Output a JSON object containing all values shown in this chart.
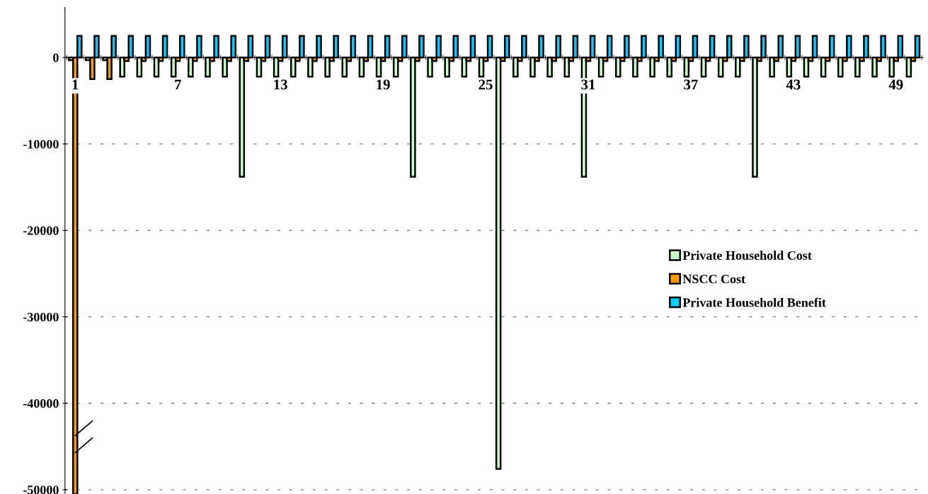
{
  "chart_data": {
    "type": "bar",
    "categories": [
      "1",
      null,
      null,
      null,
      null,
      null,
      "7",
      null,
      null,
      null,
      null,
      null,
      "13",
      null,
      null,
      null,
      null,
      null,
      "19",
      null,
      null,
      null,
      null,
      null,
      "25",
      null,
      null,
      null,
      null,
      null,
      "31",
      null,
      null,
      null,
      null,
      null,
      "37",
      null,
      null,
      null,
      null,
      null,
      "43",
      null,
      null,
      null,
      null,
      null,
      "49",
      null
    ],
    "series": [
      {
        "name": "Private Household Cost",
        "color": "#ccffcc",
        "values": [
          -300,
          -300,
          -300,
          -2200,
          -2200,
          -2200,
          -2200,
          -2200,
          -2200,
          -2200,
          -13800,
          -2200,
          -2200,
          -2200,
          -2200,
          -2200,
          -2200,
          -2200,
          -2200,
          -2200,
          -13800,
          -2200,
          -2200,
          -2200,
          -2200,
          -47600,
          -2200,
          -2200,
          -2200,
          -2200,
          -13800,
          -2200,
          -2200,
          -2200,
          -2200,
          -2200,
          -2200,
          -2200,
          -2200,
          -2200,
          -13800,
          -2200,
          -2200,
          -2200,
          -2200,
          -2200,
          -2200,
          -2200,
          -2200,
          -2200
        ]
      },
      {
        "name": "NSCC Cost",
        "color": "#ff9900",
        "values": [
          -50500,
          -2500,
          -2500,
          -400,
          -400,
          -400,
          -400,
          -400,
          -400,
          -400,
          -400,
          -400,
          -400,
          -400,
          -400,
          -400,
          -400,
          -400,
          -400,
          -400,
          -400,
          -400,
          -400,
          -400,
          -400,
          -400,
          -400,
          -400,
          -400,
          -400,
          -400,
          -400,
          -400,
          -400,
          -400,
          -400,
          -400,
          -400,
          -400,
          -400,
          -400,
          -400,
          -400,
          -400,
          -400,
          -400,
          -400,
          -400,
          -400,
          -400
        ]
      },
      {
        "name": "Private Household Benefit",
        "color": "#00ccff",
        "values": [
          2500,
          2500,
          2500,
          2500,
          2500,
          2500,
          2500,
          2500,
          2500,
          2500,
          2500,
          2500,
          2500,
          2500,
          2500,
          2500,
          2500,
          2500,
          2500,
          2500,
          2500,
          2500,
          2500,
          2500,
          2500,
          2500,
          2500,
          2500,
          2500,
          2500,
          2500,
          2500,
          2500,
          2500,
          2500,
          2500,
          2500,
          2500,
          2500,
          2500,
          2500,
          2500,
          2500,
          2500,
          2500,
          2500,
          2500,
          2500,
          2500,
          2500
        ]
      }
    ],
    "ylim": [
      -50500,
      5800
    ],
    "yticks": [
      -50000,
      -40000,
      -30000,
      -20000,
      -10000,
      0
    ],
    "grid": "y",
    "legend": "right"
  }
}
